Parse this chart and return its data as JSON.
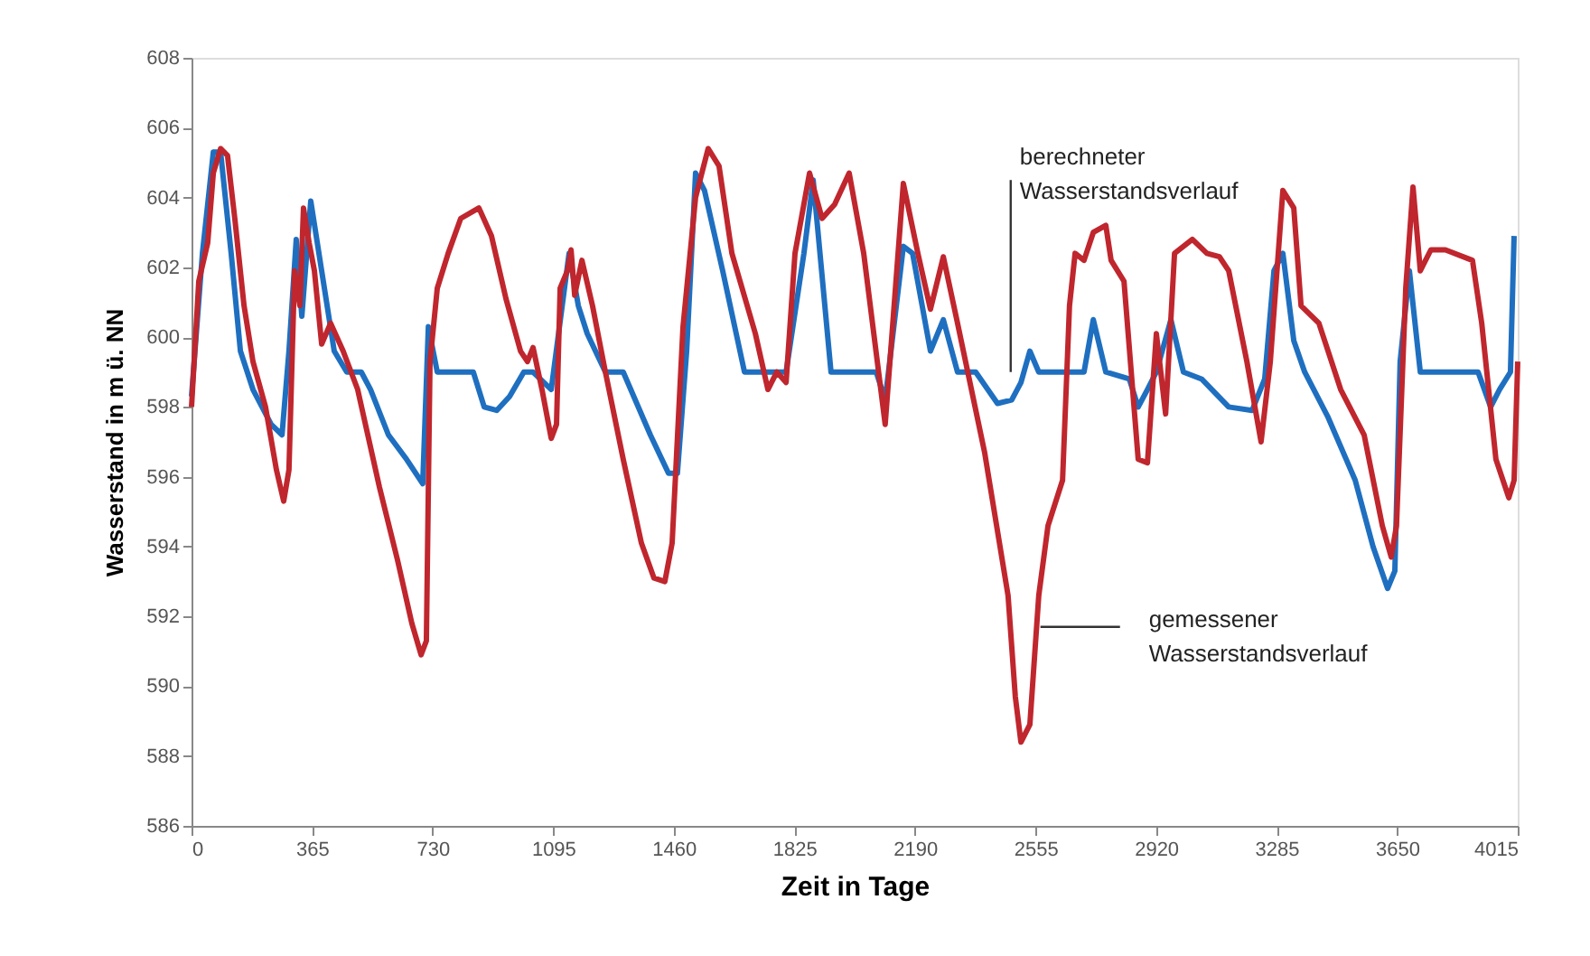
{
  "chart_data": {
    "type": "line",
    "xlabel": "Zeit in Tage",
    "ylabel": "Wasserstand in m ü. NN",
    "xlim": [
      0,
      4015
    ],
    "xticks": [
      0,
      365,
      730,
      1095,
      1460,
      1825,
      2190,
      2555,
      2920,
      3285,
      3650,
      4015
    ],
    "ylim": [
      586,
      608
    ],
    "yticks": [
      586,
      588,
      590,
      592,
      594,
      596,
      598,
      600,
      602,
      604,
      606,
      608
    ],
    "grid": false,
    "marker": "none",
    "line_style": "solid",
    "series": [
      {
        "color": "#1f6fc0",
        "x": [
          0,
          33,
          66,
          88,
          120,
          148,
          186,
          241,
          274,
          295,
          317,
          334,
          361,
          394,
          432,
          470,
          514,
          542,
          596,
          651,
          700,
          717,
          744,
          799,
          853,
          886,
          924,
          963,
          1006,
          1034,
          1089,
          1143,
          1171,
          1198,
          1253,
          1307,
          1389,
          1444,
          1471,
          1499,
          1526,
          1553,
          1608,
          1674,
          1745,
          1800,
          1854,
          1882,
          1936,
          2018,
          2073,
          2100,
          2155,
          2183,
          2237,
          2276,
          2319,
          2374,
          2440,
          2483,
          2511,
          2538,
          2565,
          2702,
          2730,
          2768,
          2839,
          2866,
          2894,
          2921,
          2965,
          3003,
          3058,
          3140,
          3211,
          3249,
          3277,
          3304,
          3337,
          3370,
          3441,
          3523,
          3577,
          3621,
          3643,
          3659,
          3687,
          3720,
          3796,
          3895,
          3933,
          3960,
          3993,
          4004
        ],
        "values": [
          598.3,
          602.4,
          605.3,
          605.3,
          602.4,
          599.6,
          598.5,
          597.5,
          597.2,
          599.6,
          602.8,
          600.6,
          603.9,
          601.9,
          599.6,
          599,
          599,
          598.5,
          597.2,
          596.5,
          595.8,
          600.3,
          599,
          599,
          599,
          598,
          597.9,
          598.3,
          599,
          599,
          598.5,
          602.4,
          600.9,
          600.1,
          599,
          599,
          597.2,
          596.1,
          596.1,
          599.6,
          604.7,
          604.2,
          601.9,
          599,
          599,
          599,
          602.4,
          604.5,
          599,
          599,
          599,
          598.2,
          602.6,
          602.4,
          599.6,
          600.5,
          599,
          599,
          598.1,
          598.2,
          598.7,
          599.6,
          599,
          599,
          600.5,
          599,
          598.8,
          598,
          598.5,
          599,
          600.5,
          599,
          598.8,
          598,
          597.9,
          598.8,
          601.9,
          602.4,
          599.9,
          599,
          597.7,
          595.9,
          594,
          592.8,
          593.3,
          599.3,
          601.9,
          599,
          599,
          599,
          598,
          598.5,
          599,
          602.9
        ]
      },
      {
        "color": "#c0262d",
        "x": [
          0,
          22,
          49,
          66,
          88,
          109,
          131,
          159,
          186,
          224,
          257,
          279,
          295,
          312,
          328,
          339,
          356,
          372,
          394,
          421,
          459,
          503,
          569,
          624,
          667,
          695,
          711,
          722,
          744,
          777,
          815,
          870,
          908,
          952,
          996,
          1017,
          1034,
          1061,
          1089,
          1105,
          1116,
          1138,
          1149,
          1160,
          1182,
          1214,
          1253,
          1307,
          1362,
          1400,
          1433,
          1455,
          1488,
          1526,
          1564,
          1597,
          1636,
          1707,
          1745,
          1772,
          1800,
          1827,
          1871,
          1909,
          1947,
          1991,
          2035,
          2100,
          2155,
          2199,
          2237,
          2276,
          2319,
          2401,
          2472,
          2494,
          2511,
          2538,
          2565,
          2593,
          2637,
          2658,
          2675,
          2702,
          2730,
          2768,
          2784,
          2823,
          2866,
          2894,
          2921,
          2949,
          2976,
          3030,
          3074,
          3112,
          3140,
          3195,
          3238,
          3266,
          3304,
          3337,
          3359,
          3413,
          3479,
          3550,
          3605,
          3632,
          3648,
          3676,
          3698,
          3720,
          3752,
          3796,
          3878,
          3906,
          3949,
          3988,
          4004,
          4015
        ],
        "values": [
          598,
          601.6,
          602.7,
          604.7,
          605.4,
          605.2,
          603.4,
          600.9,
          599.3,
          598,
          596.2,
          595.3,
          596.2,
          601.9,
          600.9,
          603.7,
          602.7,
          601.9,
          599.8,
          600.4,
          599.6,
          598.5,
          595.7,
          593.6,
          591.8,
          590.9,
          591.3,
          599.3,
          601.4,
          602.4,
          603.4,
          603.7,
          602.9,
          601.1,
          599.6,
          599.3,
          599.7,
          598.5,
          597.1,
          597.5,
          601.4,
          601.9,
          602.5,
          601.2,
          602.2,
          600.9,
          599,
          596.5,
          594.1,
          593.1,
          593,
          594.1,
          600.3,
          604,
          605.4,
          604.9,
          602.4,
          600.1,
          598.5,
          599,
          598.7,
          602.4,
          604.7,
          603.4,
          603.8,
          604.7,
          602.4,
          597.5,
          604.4,
          602.4,
          600.8,
          602.3,
          600.4,
          596.7,
          592.6,
          589.7,
          588.4,
          588.9,
          592.6,
          594.6,
          595.9,
          600.9,
          602.4,
          602.2,
          603,
          603.2,
          602.2,
          601.6,
          596.5,
          596.4,
          600.1,
          597.8,
          602.4,
          602.8,
          602.4,
          602.3,
          601.9,
          599.3,
          597,
          599.3,
          604.2,
          603.7,
          600.9,
          600.4,
          598.5,
          597.2,
          594.6,
          593.7,
          594.6,
          601.4,
          604.3,
          601.9,
          602.5,
          602.5,
          602.2,
          600.4,
          596.5,
          595.4,
          595.9,
          599.3
        ]
      }
    ],
    "annotations": [
      {
        "text": "berechneter Wasserstandsverlauf",
        "x": 2480,
        "y": 599
      },
      {
        "text": "gemessener Wasserstandsverlauf",
        "x": 2570,
        "y": 591.7
      }
    ]
  }
}
